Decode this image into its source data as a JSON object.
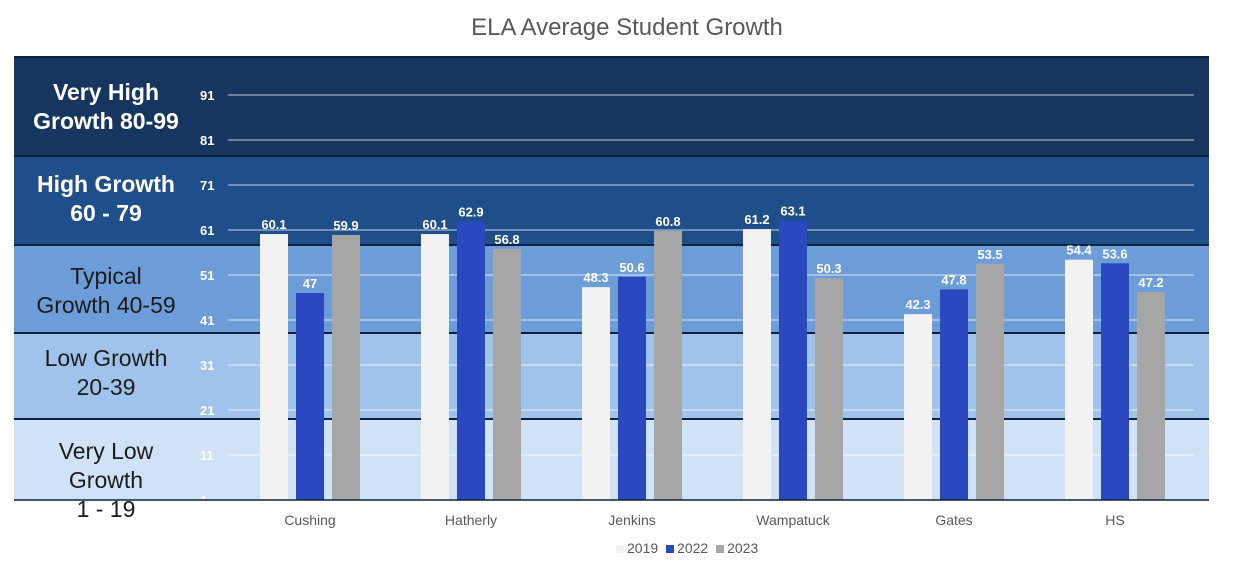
{
  "chart_data": {
    "type": "bar",
    "title": "ELA Average Student Growth",
    "categories": [
      "Cushing",
      "Hatherly",
      "Jenkins",
      "Wampatuck",
      "Gates",
      "HS"
    ],
    "series": [
      {
        "name": "2019",
        "color": "#f2f2f2",
        "values": [
          60.1,
          60.1,
          48.3,
          61.2,
          42.3,
          54.4
        ]
      },
      {
        "name": "2022",
        "color": "#2a48c0",
        "values": [
          47,
          62.9,
          50.6,
          63.1,
          47.8,
          53.6
        ]
      },
      {
        "name": "2023",
        "color": "#a6a6a6",
        "values": [
          59.9,
          56.8,
          60.8,
          50.3,
          53.5,
          47.2
        ]
      }
    ],
    "yticks": [
      1,
      11,
      21,
      31,
      41,
      51,
      61,
      71,
      81,
      91
    ],
    "ylim": [
      1,
      100
    ],
    "grid": true,
    "legend_position": "bottom",
    "bands": [
      {
        "label_line1": "Very High",
        "label_line2": "Growth 80-99",
        "range": [
          80,
          99
        ],
        "color": "#16355f",
        "style": "bold"
      },
      {
        "label_line1": "High Growth",
        "label_line2": "60 - 79",
        "range": [
          60,
          80
        ],
        "color": "#1f4f8b",
        "style": "bold"
      },
      {
        "label_line1": "Typical",
        "label_line2": "Growth 40-59",
        "range": [
          40,
          60
        ],
        "color": "#6d9dd8",
        "style": "plain"
      },
      {
        "label_line1": "Low Growth",
        "label_line2": "20-39",
        "range": [
          20,
          40
        ],
        "color": "#9fc3ea",
        "style": "plain"
      },
      {
        "label_line1": "Very Low",
        "label_line2": "Growth",
        "label_line3": "1 - 19",
        "range": [
          1,
          20
        ],
        "color": "#d0e2f6",
        "style": "plain"
      }
    ]
  }
}
